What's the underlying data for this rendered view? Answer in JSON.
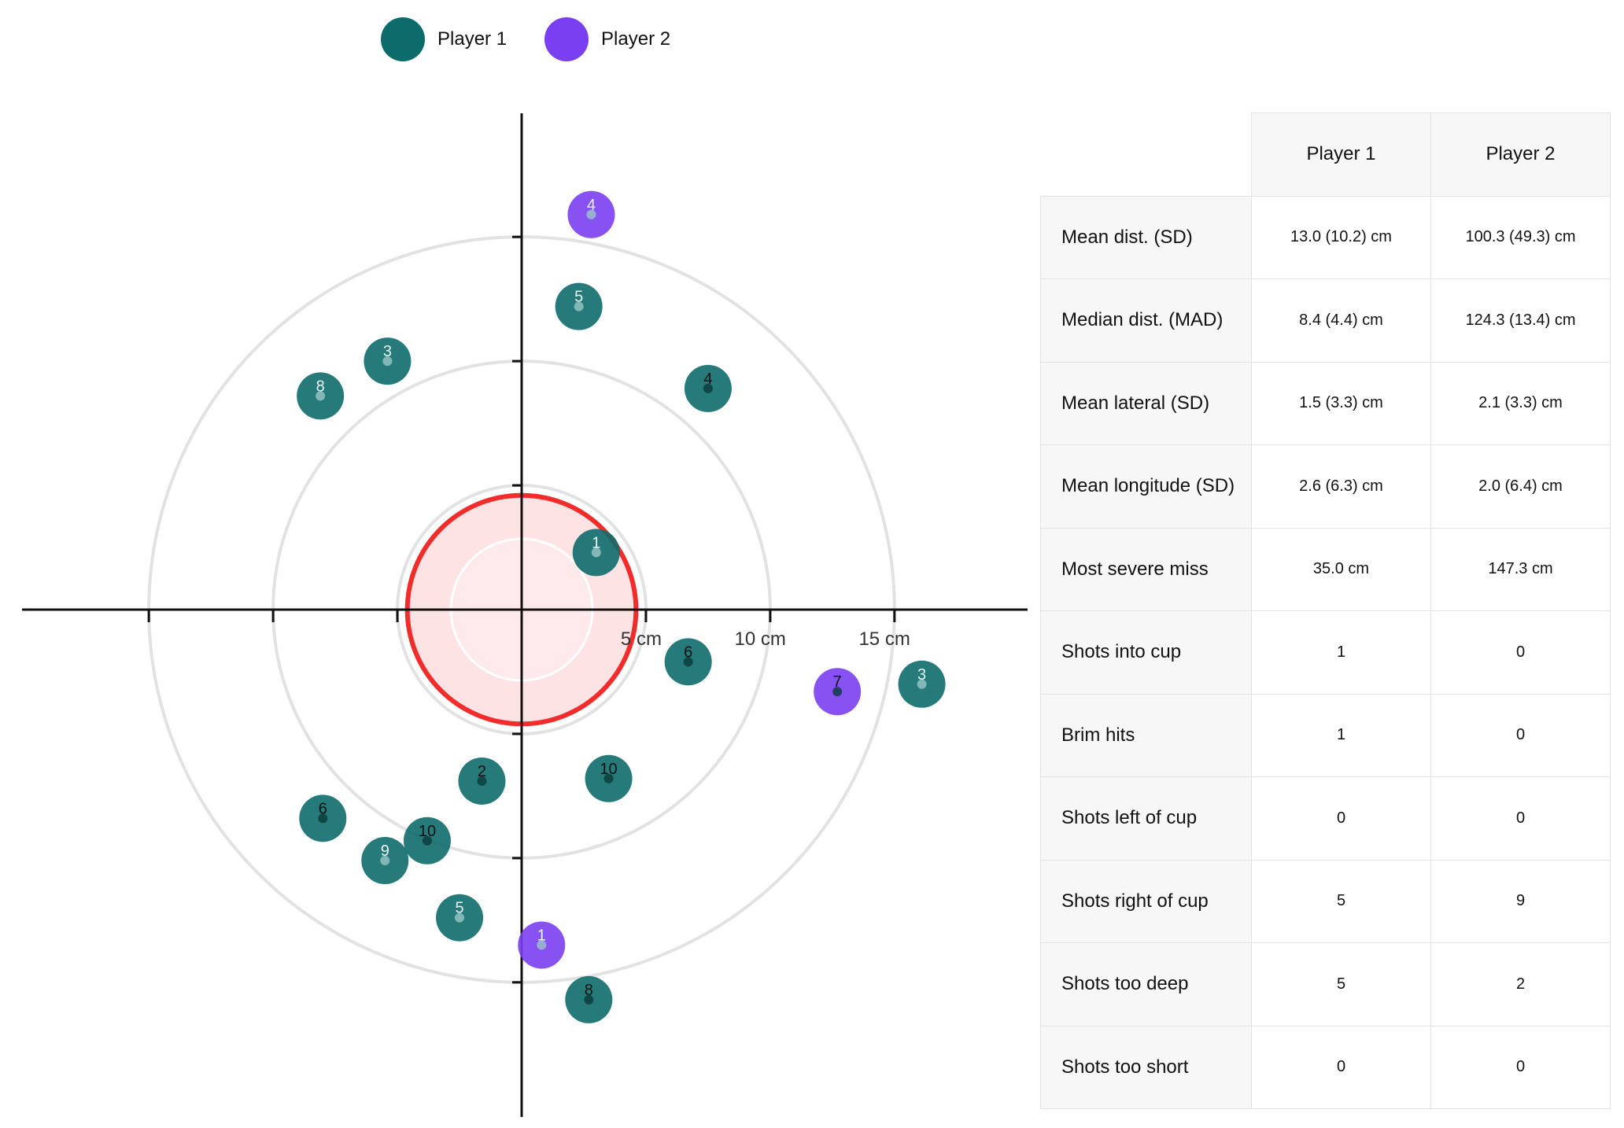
{
  "legend": {
    "items": [
      {
        "label": "Player 1",
        "color": "#0e6b6b"
      },
      {
        "label": "Player 2",
        "color": "#7b3ff2"
      }
    ]
  },
  "chart_data": {
    "type": "scatter",
    "units": "cm",
    "x_tick_labels": [
      "5 cm",
      "10 cm",
      "15 cm"
    ],
    "axis_range_cm": [
      -18.5,
      18.5
    ],
    "rings_cm": [
      5,
      10,
      15
    ],
    "cup_radius_cm": 4.6,
    "cup_color": "#f22b2b",
    "grid": true,
    "legend_position": "top-left",
    "series": [
      {
        "name": "Player 1",
        "color": "#0e6b6b",
        "points": [
          {
            "label": "1",
            "x": 3.0,
            "y": 2.3
          },
          {
            "label": "2",
            "x": -1.6,
            "y": -6.9
          },
          {
            "label": "3",
            "x": -5.4,
            "y": 10.0
          },
          {
            "label": "4",
            "x": 7.5,
            "y": 8.9
          },
          {
            "label": "5",
            "x": 2.3,
            "y": 12.2
          },
          {
            "label": "6",
            "x": 6.7,
            "y": -2.1
          },
          {
            "label": "8",
            "x": -8.1,
            "y": 8.6
          },
          {
            "label": "10",
            "x": 3.5,
            "y": -6.8
          },
          {
            "label": "3",
            "x": 16.1,
            "y": -3.0
          },
          {
            "label": "6",
            "x": -8.0,
            "y": -8.4
          },
          {
            "label": "9",
            "x": -5.5,
            "y": -10.1
          },
          {
            "label": "10",
            "x": -3.8,
            "y": -9.3
          },
          {
            "label": "5",
            "x": -2.5,
            "y": -12.4
          },
          {
            "label": "8",
            "x": 2.7,
            "y": -15.7
          }
        ]
      },
      {
        "name": "Player 2",
        "color": "#7b3ff2",
        "points": [
          {
            "label": "4",
            "x": 2.8,
            "y": 15.9
          },
          {
            "label": "7",
            "x": 12.7,
            "y": -3.3
          },
          {
            "label": "1",
            "x": 0.8,
            "y": -13.5
          }
        ]
      }
    ]
  },
  "table": {
    "headers": [
      "Player 1",
      "Player 2"
    ],
    "rows": [
      {
        "label": "Mean dist. (SD)",
        "p1": "13.0 (10.2) cm",
        "p2": "100.3 (49.3) cm"
      },
      {
        "label": "Median dist. (MAD)",
        "p1": "8.4 (4.4) cm",
        "p2": "124.3 (13.4) cm"
      },
      {
        "label": "Mean lateral (SD)",
        "p1": "1.5 (3.3) cm",
        "p2": "2.1 (3.3) cm"
      },
      {
        "label": "Mean longitude (SD)",
        "p1": "2.6 (6.3) cm",
        "p2": "2.0 (6.4) cm"
      },
      {
        "label": "Most severe miss",
        "p1": "35.0 cm",
        "p2": "147.3 cm"
      },
      {
        "label": "Shots into cup",
        "p1": "1",
        "p2": "0"
      },
      {
        "label": "Brim hits",
        "p1": "1",
        "p2": "0"
      },
      {
        "label": "Shots left of cup",
        "p1": "0",
        "p2": "0"
      },
      {
        "label": "Shots right of cup",
        "p1": "5",
        "p2": "9"
      },
      {
        "label": "Shots too deep",
        "p1": "5",
        "p2": "2"
      },
      {
        "label": "Shots too short",
        "p1": "0",
        "p2": "0"
      }
    ]
  }
}
